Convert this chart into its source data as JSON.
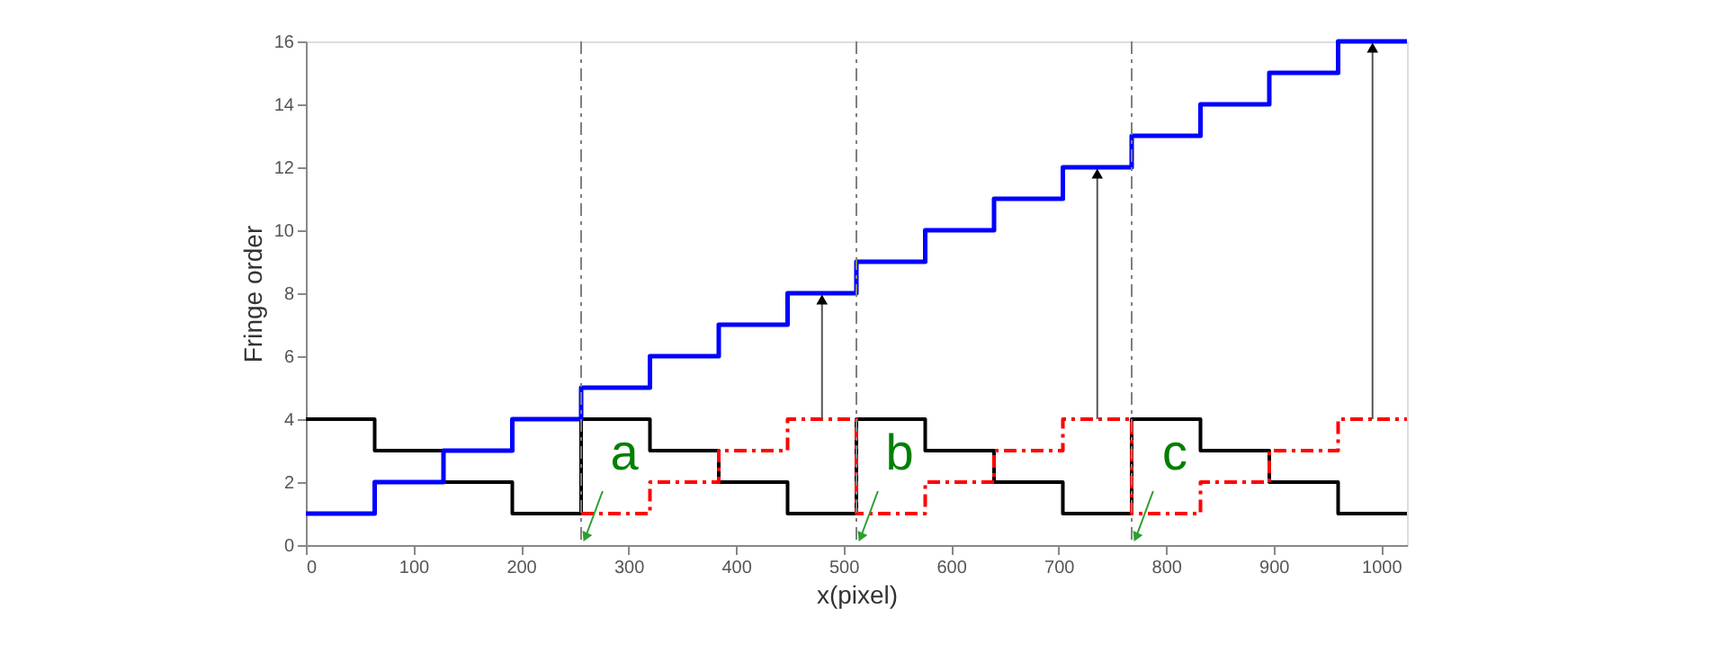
{
  "chart_data": {
    "type": "step",
    "xlabel": "x(pixel)",
    "ylabel": "Fringe order",
    "x": [
      0,
      64,
      128,
      192,
      256,
      320,
      384,
      448,
      512,
      576,
      640,
      704,
      768,
      832,
      896,
      960,
      1024
    ],
    "series": [
      {
        "color": "#000000",
        "line_style": "solid",
        "values": [
          4,
          3,
          2,
          1,
          4,
          3,
          2,
          1,
          4,
          3,
          2,
          1,
          4,
          3,
          2,
          1,
          1
        ]
      },
      {
        "color": "#0000ff",
        "line_style": "solid",
        "values": [
          1,
          2,
          3,
          4,
          5,
          6,
          7,
          8,
          9,
          10,
          11,
          12,
          13,
          14,
          15,
          16,
          16
        ]
      },
      {
        "color": "#ff0000",
        "line_style": "dashed",
        "values": [
          null,
          null,
          null,
          null,
          1,
          2,
          3,
          4,
          1,
          2,
          3,
          4,
          1,
          2,
          3,
          4,
          4
        ]
      }
    ],
    "xlim": [
      0,
      1024
    ],
    "xticks": [
      0,
      100,
      200,
      300,
      400,
      500,
      600,
      700,
      800,
      900,
      1000
    ],
    "ylim": [
      0,
      16
    ],
    "yticks": [
      0,
      2,
      4,
      6,
      8,
      10,
      12,
      14,
      16
    ],
    "ref_lines": [
      {
        "axis": "x",
        "value": 256,
        "color": "#808080",
        "line_style": "dashed"
      },
      {
        "axis": "x",
        "value": 512,
        "color": "#808080",
        "line_style": "dashed"
      },
      {
        "axis": "x",
        "value": 768,
        "color": "#808080",
        "line_style": "dashed"
      }
    ],
    "annotations": [
      {
        "text": "a",
        "x": 256,
        "y": 0
      },
      {
        "text": "b",
        "x": 512,
        "y": 0
      },
      {
        "text": "c",
        "x": 768,
        "y": 0
      }
    ],
    "grid": false
  }
}
